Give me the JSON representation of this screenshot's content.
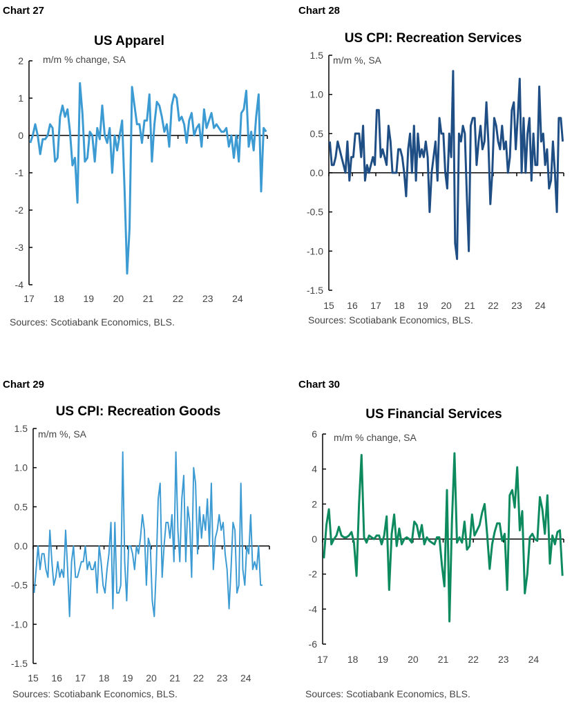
{
  "chart_data": [
    {
      "type": "line",
      "chart_label": "Chart 27",
      "title": "US Apparel",
      "unit_label": "m/m % change, SA",
      "source": "Sources: Scotiabank Economics, BLS.",
      "ylim": [
        -4,
        2
      ],
      "yticks": [
        "2",
        "1",
        "0",
        "-1",
        "-2",
        "-3",
        "-4"
      ],
      "ytick_values": [
        2,
        1,
        0,
        -1,
        -2,
        -3,
        -4
      ],
      "xlim": [
        2017,
        2025
      ],
      "xticks": [
        "17",
        "18",
        "19",
        "20",
        "21",
        "22",
        "23",
        "24"
      ],
      "start": "2017-01",
      "frequency": "monthly",
      "color": "#3d9bd3",
      "values": [
        -0.2,
        0,
        0.3,
        0,
        -0.5,
        -0.1,
        -0.1,
        0,
        0.3,
        0.2,
        -0.7,
        -0.6,
        0.5,
        0.8,
        0.5,
        0.7,
        0.1,
        -0.8,
        -0.6,
        -1.8,
        1.4,
        0.6,
        -0.7,
        -0.6,
        0.1,
        0,
        -0.7,
        0.2,
        -0.1,
        0.8,
        0,
        -0.2,
        0.2,
        -1,
        0,
        -0.4,
        0,
        0.4,
        -1.5,
        -3.7,
        -2.5,
        1.3,
        0.8,
        0.3,
        0.3,
        -0.2,
        0.4,
        0.4,
        1.1,
        -0.7,
        0.3,
        0.9,
        0.8,
        0.5,
        0.1,
        0.3,
        -0.3,
        0.8,
        1.1,
        1.0,
        0.4,
        0.5,
        0.3,
        -0.2,
        0.4,
        0.6,
        0,
        0.2,
        0.3,
        -0.3,
        0.7,
        0.2,
        0.4,
        0.6,
        0.2,
        0.3,
        0.2,
        0.1,
        0.1,
        0.2,
        -0.3,
        0,
        -0.6,
        0,
        -0.7,
        0.6,
        0.7,
        1.2,
        -0.3,
        0.1,
        -0.4,
        0.5,
        1.1,
        -1.5,
        0.2,
        0.1
      ]
    },
    {
      "type": "line",
      "chart_label": "Chart 28",
      "title": "US CPI: Recreation Services",
      "unit_label": "m/m %, SA",
      "source": "Sources: Scotiabank Economics, BLS.",
      "ylim": [
        -1.5,
        1.5
      ],
      "yticks": [
        "1.5",
        "1.0",
        "0.5",
        "0.0",
        "-0.5",
        "-1.0",
        "-1.5"
      ],
      "ytick_values": [
        1.5,
        1.0,
        0.5,
        0.0,
        -0.5,
        -1.0,
        -1.5
      ],
      "xlim": [
        2015,
        2025
      ],
      "xticks": [
        "15",
        "16",
        "17",
        "18",
        "19",
        "20",
        "21",
        "22",
        "23",
        "24"
      ],
      "start": "2015-01",
      "frequency": "monthly",
      "color": "#1f4e85",
      "values": [
        0.4,
        0.1,
        0.1,
        0.2,
        0.4,
        0.3,
        0.2,
        0.1,
        0,
        0.4,
        -0.1,
        0.2,
        0.2,
        0.5,
        0.5,
        0.5,
        0.2,
        0.6,
        -0.1,
        0.1,
        0,
        0.1,
        0.2,
        0.1,
        0.8,
        0.8,
        0.2,
        0.3,
        0.2,
        0.1,
        0.6,
        0.4,
        0,
        0,
        0,
        0.3,
        0.3,
        0.2,
        0,
        -0.3,
        0.3,
        0.5,
        0,
        0.6,
        -0.1,
        0.5,
        0.2,
        0.3,
        0.2,
        0.4,
        0.2,
        -0.5,
        0,
        0.2,
        0.4,
        -0.1,
        0.7,
        0.5,
        0.5,
        0,
        -0.2,
        0.5,
        0.2,
        1.3,
        -0.9,
        -1.1,
        0.5,
        0.4,
        0.6,
        0.5,
        -0.3,
        -1.0,
        0.6,
        0.7,
        0.7,
        0.1,
        0.4,
        0.6,
        0.3,
        0.4,
        0.9,
        0.4,
        -0.4,
        0,
        0.7,
        0.6,
        0.4,
        0.3,
        0.6,
        0.3,
        0.4,
        0,
        0.2,
        0.8,
        0.9,
        0.3,
        0.7,
        1.2,
        0,
        0.7,
        0,
        0.5,
        0.7,
        -0.1,
        0.5,
        0.1,
        0.1,
        1.1,
        0.4,
        0.5,
        0.1,
        0.3,
        -0.2,
        -0.1,
        0.4,
        0,
        -0.5,
        0.7,
        0.7,
        0.4
      ]
    },
    {
      "type": "line",
      "chart_label": "Chart 29",
      "title": "US CPI: Recreation Goods",
      "unit_label": "m/m %, SA",
      "source": "Sources: Scotiabank Economics, BLS.",
      "ylim": [
        -1.5,
        1.5
      ],
      "yticks": [
        "1.5",
        "1.0",
        "0.5",
        "0.0",
        "-0.5",
        "-1.0",
        "-1.5"
      ],
      "ytick_values": [
        1.5,
        1.0,
        0.5,
        0.0,
        -0.5,
        -1.0,
        -1.5
      ],
      "xlim": [
        2015,
        2025
      ],
      "xticks": [
        "15",
        "16",
        "17",
        "18",
        "19",
        "20",
        "21",
        "22",
        "23",
        "24"
      ],
      "start": "2015-01",
      "frequency": "monthly",
      "color": "#3d9bd3",
      "values": [
        -0.6,
        -0.3,
        0,
        -0.3,
        -0.1,
        -0.1,
        -0.3,
        -0.4,
        0.2,
        -0.2,
        -0.5,
        -0.4,
        -0.2,
        -0.4,
        -0.3,
        -0.4,
        0.2,
        -0.3,
        -0.9,
        -0.2,
        0,
        -0.4,
        -0.4,
        -0.3,
        -0.2,
        -0.2,
        0,
        -0.3,
        -0.2,
        -0.3,
        -0.3,
        -0.2,
        -0.6,
        0,
        -0.2,
        -0.5,
        -0.6,
        -0.3,
        -0.1,
        0.3,
        -0.8,
        0.3,
        -0.6,
        -0.6,
        -0.5,
        1.2,
        -0.2,
        -0.7,
        0,
        0,
        -0.1,
        -0.3,
        0,
        -0.1,
        0.1,
        0.4,
        0.2,
        -0.5,
        0.1,
        0,
        -0.7,
        -0.9,
        -0.3,
        0.6,
        0.8,
        -0.4,
        0,
        0.3,
        0.3,
        0.1,
        0.4,
        -0.2,
        1.2,
        0.2,
        -0.2,
        0.6,
        0.9,
        -0.2,
        0.5,
        0.3,
        -0.4,
        1.0,
        0.8,
        -0.1,
        0.5,
        0.1,
        0.4,
        0.2,
        0.6,
        0,
        0.8,
        -0.3,
        0.1,
        0.2,
        0.4,
        0.2,
        0.3,
        -0.1,
        -0.3,
        -0.8,
        -0.3,
        0.3,
        0.2,
        -0.6,
        -0.5,
        0.8,
        -0.3,
        -0.5,
        0,
        -0.1,
        0.4,
        -0.3,
        -0.2,
        -0.3,
        0,
        -0.5,
        -0.5
      ]
    },
    {
      "type": "line",
      "chart_label": "Chart 30",
      "title": "US Financial Services",
      "unit_label": "m/m % change, SA",
      "source": "Sources: Scotiabank Economics, BLS.",
      "ylim": [
        -6,
        6
      ],
      "yticks": [
        "6",
        "4",
        "2",
        "0",
        "-2",
        "-4",
        "-6"
      ],
      "ytick_values": [
        6,
        4,
        2,
        0,
        -2,
        -4,
        -6
      ],
      "xlim": [
        2017,
        2025
      ],
      "xticks": [
        "17",
        "18",
        "19",
        "20",
        "21",
        "22",
        "23",
        "24"
      ],
      "start": "2017-01",
      "frequency": "monthly",
      "color": "#0e8a5f",
      "values": [
        -1.1,
        0.8,
        1.7,
        -0.3,
        0,
        0.2,
        0.7,
        0.2,
        0.1,
        0.1,
        0.2,
        0.4,
        -0.2,
        -2.1,
        2.0,
        4.8,
        0.1,
        -0.2,
        0.2,
        0.1,
        0,
        0.2,
        0.2,
        -0.3,
        0.2,
        1.3,
        -2.9,
        0.3,
        1.4,
        -0.4,
        0.6,
        -0.3,
        0,
        0.1,
        0,
        -0.2,
        1.0,
        0.8,
        0.1,
        0.8,
        -0.3,
        0.1,
        -0.1,
        -0.2,
        -0.3,
        0.1,
        0.1,
        -1.5,
        -2.7,
        2.8,
        -4.7,
        1.0,
        4.9,
        -0.2,
        0.1,
        -0.2,
        1.0,
        -0.6,
        -0.4,
        1.4,
        0.2,
        0.5,
        0.8,
        1.5,
        2.0,
        0.3,
        -1.7,
        -0.3,
        0.4,
        0.9,
        0.9,
        -0.1,
        0.3,
        -2.9,
        2.5,
        2.8,
        1.8,
        4.1,
        0.5,
        1.6,
        -3.1,
        -2.0,
        0.1,
        0.3,
        0,
        -0.1,
        2.4,
        1.7,
        0.3,
        2.5,
        -1.4,
        0.2,
        -0.3,
        0.4,
        0.5,
        -2.1
      ]
    }
  ]
}
